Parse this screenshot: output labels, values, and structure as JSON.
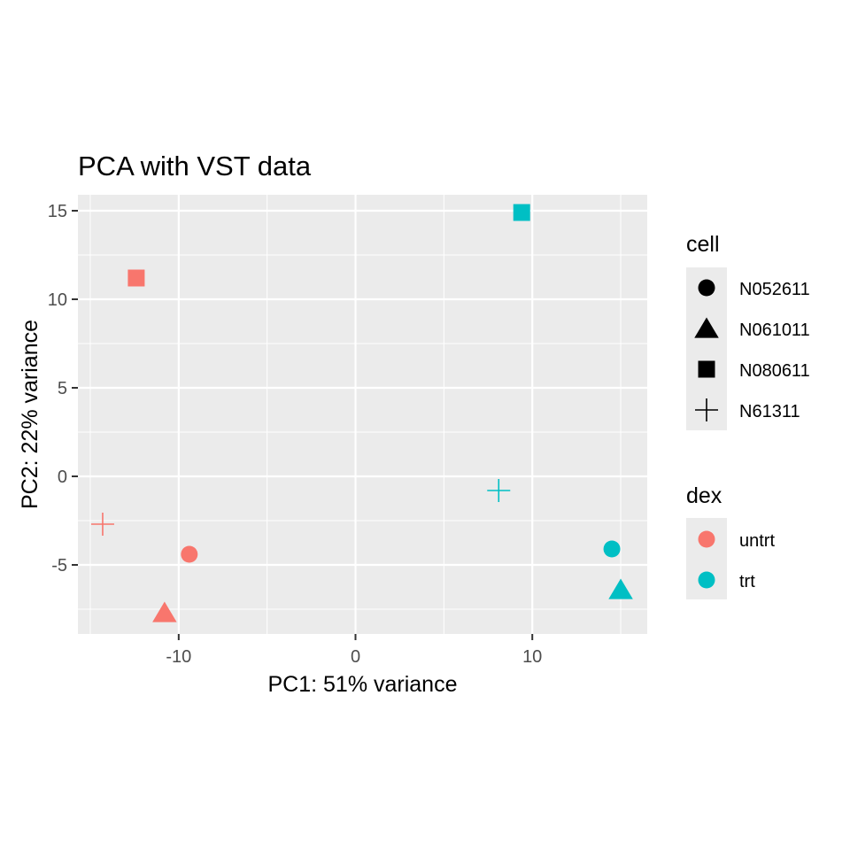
{
  "chart_data": {
    "type": "scatter",
    "title": "PCA with VST data",
    "xlabel": "PC1: 51% variance",
    "ylabel": "PC2: 22% variance",
    "xlim": [
      -15.7,
      16.5
    ],
    "ylim": [
      -8.9,
      15.9
    ],
    "xticks": [
      -10,
      0,
      10
    ],
    "xtick_labels": [
      "-10",
      "0",
      "10"
    ],
    "yticks": [
      -5,
      0,
      5,
      10,
      15
    ],
    "ytick_labels": [
      "-5",
      "0",
      "5",
      "10",
      "15"
    ],
    "grid": true,
    "legend_position": "right",
    "legends": {
      "cell": {
        "title": "cell",
        "items": [
          {
            "label": "N052611",
            "shape": "circle"
          },
          {
            "label": "N061011",
            "shape": "triangle"
          },
          {
            "label": "N080611",
            "shape": "square"
          },
          {
            "label": "N61311",
            "shape": "plus"
          }
        ]
      },
      "dex": {
        "title": "dex",
        "items": [
          {
            "label": "untrt",
            "color": "#F8766D"
          },
          {
            "label": "trt",
            "color": "#00BFC4"
          }
        ]
      }
    },
    "points": [
      {
        "x": -12.4,
        "y": 11.2,
        "cell": "N080611",
        "dex": "untrt"
      },
      {
        "x": -14.3,
        "y": -2.7,
        "cell": "N61311",
        "dex": "untrt"
      },
      {
        "x": -9.4,
        "y": -4.4,
        "cell": "N052611",
        "dex": "untrt"
      },
      {
        "x": -10.8,
        "y": -7.7,
        "cell": "N061011",
        "dex": "untrt"
      },
      {
        "x": 9.4,
        "y": 14.9,
        "cell": "N080611",
        "dex": "trt"
      },
      {
        "x": 8.1,
        "y": -0.8,
        "cell": "N61311",
        "dex": "trt"
      },
      {
        "x": 14.5,
        "y": -4.1,
        "cell": "N052611",
        "dex": "trt"
      },
      {
        "x": 15.0,
        "y": -6.4,
        "cell": "N061011",
        "dex": "trt"
      }
    ]
  }
}
